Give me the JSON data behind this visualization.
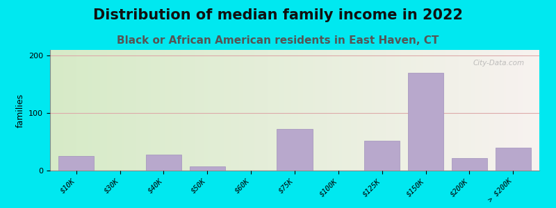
{
  "title": "Distribution of median family income in 2022",
  "subtitle": "Black or African American residents in East Haven, CT",
  "ylabel": "families",
  "background_outer": "#00e8f0",
  "bar_color": "#b8a8cc",
  "bar_edge_color": "#a090bb",
  "categories": [
    "$10K",
    "$30K",
    "$40K",
    "$50K",
    "$60K",
    "$75K",
    "$100K",
    "$125K",
    "$150K",
    "$200K",
    "> $200K"
  ],
  "values": [
    25,
    0,
    28,
    7,
    0,
    73,
    0,
    52,
    170,
    22,
    40
  ],
  "ylim": [
    0,
    210
  ],
  "yticks": [
    0,
    100,
    200
  ],
  "watermark": "City-Data.com",
  "grid_color": "#ddaaaa",
  "title_fontsize": 15,
  "subtitle_fontsize": 11,
  "ylabel_fontsize": 9,
  "subtitle_color": "#555555",
  "title_color": "#111111"
}
